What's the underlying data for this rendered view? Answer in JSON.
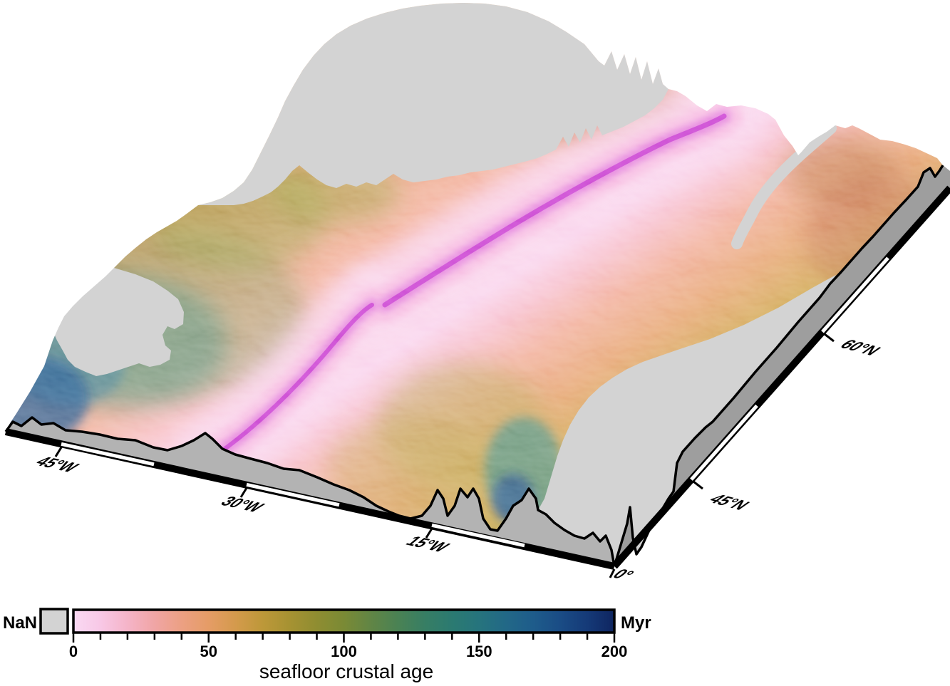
{
  "map": {
    "lon_labels": [
      "45°W",
      "30°W",
      "15°W",
      "0°"
    ],
    "lat_labels": [
      "45°N",
      "60°N"
    ],
    "land_nan_color": "#d3d3d3",
    "left_sidewall_color": "#b3b3b3",
    "right_sidewall_color": "#9e9e9e",
    "frame_color": "#000000",
    "ridge_axis_color": "#bb2cc4",
    "young_crust_color": "#f8c8e8",
    "old_crust_color": "#173a74",
    "background_color": "#ffffff"
  },
  "colorbar": {
    "nan_label": "NaN",
    "unit_label": "Myr",
    "title": "seafloor crustal age",
    "tick_labels": [
      "0",
      "50",
      "100",
      "150",
      "200"
    ],
    "min": 0,
    "max": 200,
    "minor_tick_interval": 10,
    "nan_color": "#d3d3d3",
    "gradient_stops": [
      {
        "value": 0,
        "color": "#fad9f3"
      },
      {
        "value": 10,
        "color": "#f8c8e6"
      },
      {
        "value": 20,
        "color": "#f5b4c8"
      },
      {
        "value": 30,
        "color": "#f0a5a5"
      },
      {
        "value": 40,
        "color": "#eca083"
      },
      {
        "value": 50,
        "color": "#e59c66"
      },
      {
        "value": 60,
        "color": "#d49a4c"
      },
      {
        "value": 70,
        "color": "#bd9839"
      },
      {
        "value": 80,
        "color": "#a69232"
      },
      {
        "value": 90,
        "color": "#8f8d31"
      },
      {
        "value": 100,
        "color": "#7a8a35"
      },
      {
        "value": 110,
        "color": "#618545"
      },
      {
        "value": 120,
        "color": "#4a8254"
      },
      {
        "value": 130,
        "color": "#377e64"
      },
      {
        "value": 140,
        "color": "#2b7a71"
      },
      {
        "value": 150,
        "color": "#26747d"
      },
      {
        "value": 160,
        "color": "#226887"
      },
      {
        "value": 170,
        "color": "#1e5c8b"
      },
      {
        "value": 180,
        "color": "#1a4c85"
      },
      {
        "value": 190,
        "color": "#153a78"
      },
      {
        "value": 200,
        "color": "#0f2560"
      }
    ]
  }
}
